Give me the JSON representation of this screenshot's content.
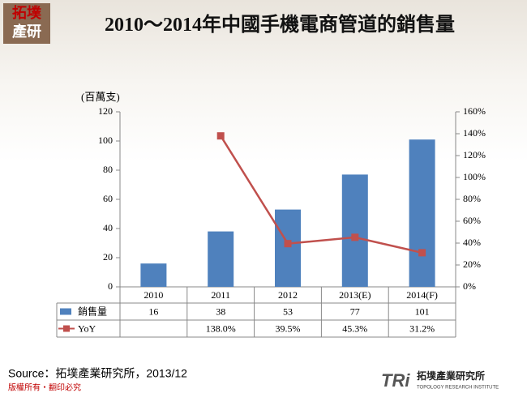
{
  "chart_data": {
    "type": "bar",
    "title": "2010～2014年中國手機電商管道的銷售量",
    "y_label": "(百萬支)",
    "categories": [
      "2010",
      "2011",
      "2012",
      "2013(E)",
      "2014(F)"
    ],
    "series": [
      {
        "name": "銷售量",
        "type": "bar",
        "color": "#4f81bd",
        "values": [
          16,
          38,
          53,
          77,
          101
        ]
      },
      {
        "name": "YoY",
        "type": "line",
        "axis": "y2",
        "color": "#c0504d",
        "values": [
          null,
          138.0,
          39.5,
          45.3,
          31.2
        ],
        "value_labels": [
          null,
          "138.0%",
          "39.5%",
          "45.3%",
          "31.2%"
        ]
      }
    ],
    "ylim": [
      0,
      120
    ],
    "yticks": [
      0,
      20,
      40,
      60,
      80,
      100,
      120
    ],
    "y2lim": [
      0,
      160
    ],
    "y2ticks": [
      {
        "value": 0,
        "label": "0%"
      },
      {
        "value": 20,
        "label": "20%"
      },
      {
        "value": 40,
        "label": "40%"
      },
      {
        "value": 60,
        "label": "60%"
      },
      {
        "value": 80,
        "label": "80%"
      },
      {
        "value": 100,
        "label": "100%"
      },
      {
        "value": 120,
        "label": "120%"
      },
      {
        "value": 140,
        "label": "140%"
      },
      {
        "value": 160,
        "label": "160%"
      }
    ],
    "grid": false
  },
  "source": "Source：拓墣產業研究所，2013/12",
  "footer": "版權所有‧翻印必究",
  "logo": {
    "top_line1": "拓墣",
    "top_line2": "產研",
    "brand": "TRi",
    "name_cn": "拓墣產業研究所",
    "name_en": "TOPOLOGY RESEARCH INSTITUTE"
  }
}
